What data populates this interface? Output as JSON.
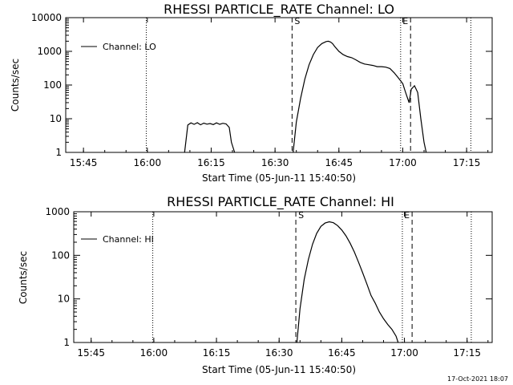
{
  "footer_timestamp": "17-Oct-2021 18:07",
  "chart_data": [
    {
      "type": "line",
      "title": "RHESSI PARTICLE_RATE Channel: LO",
      "xlabel": "Start Time (05-Jun-11 15:40:50)",
      "ylabel": "Counts/sec",
      "yscale": "log",
      "ylim": [
        1,
        10000
      ],
      "xlim": [
        "15:40:50",
        "17:21:00"
      ],
      "xticks": [
        "15:45",
        "16:00",
        "16:15",
        "16:30",
        "16:45",
        "17:00",
        "17:15"
      ],
      "yticks": [
        "1",
        "10",
        "100",
        "1000",
        "10000"
      ],
      "legend": {
        "position": "top-left",
        "label": "Channel: LO"
      },
      "markers": [
        {
          "label": "S",
          "time": "16:34:00",
          "style": "dashed"
        },
        {
          "label": "E",
          "time": "17:01:50",
          "style": "dashed"
        }
      ],
      "dotted_lines": [
        "15:59:45",
        "16:59:30",
        "17:16:00"
      ],
      "segments": [
        {
          "name": "Channel: LO",
          "x": [
            "16:08:45",
            "16:09:30",
            "16:10:15",
            "16:11:00",
            "16:11:45",
            "16:12:30",
            "16:13:15",
            "16:14:00",
            "16:14:45",
            "16:15:30",
            "16:16:15",
            "16:17:00",
            "16:17:45",
            "16:18:30",
            "16:19:15",
            "16:19:45",
            "16:20:30"
          ],
          "y": [
            1,
            6.5,
            7.5,
            6.8,
            7.6,
            6.6,
            7.4,
            6.9,
            7.2,
            6.7,
            7.5,
            6.8,
            7.3,
            7.0,
            5.5,
            2.0,
            1
          ]
        },
        {
          "name": "Channel: LO",
          "x": [
            "16:34:15",
            "16:35:00",
            "16:36:00",
            "16:37:00",
            "16:38:00",
            "16:39:00",
            "16:40:00",
            "16:41:00",
            "16:42:00",
            "16:42:30",
            "16:43:00",
            "16:43:30",
            "16:44:00",
            "16:45:00",
            "16:46:00",
            "16:47:00",
            "16:48:00",
            "16:49:00",
            "16:50:00",
            "16:51:00",
            "16:52:00",
            "16:53:00",
            "16:54:00",
            "16:55:00",
            "16:56:00",
            "16:57:00",
            "16:58:00",
            "16:59:00",
            "17:00:00",
            "17:00:30",
            "17:01:00",
            "17:01:30",
            "17:02:00",
            "17:02:45",
            "17:03:30",
            "17:04:15",
            "17:05:00",
            "17:05:30"
          ],
          "y": [
            1,
            8,
            40,
            150,
            400,
            800,
            1300,
            1700,
            1950,
            2000,
            1900,
            1700,
            1400,
            1000,
            800,
            700,
            650,
            560,
            470,
            420,
            400,
            380,
            350,
            350,
            340,
            310,
            230,
            160,
            110,
            70,
            45,
            30,
            75,
            95,
            60,
            10,
            2,
            1
          ]
        }
      ]
    },
    {
      "type": "line",
      "title": "RHESSI PARTICLE_RATE Channel: HI",
      "xlabel": "Start Time (05-Jun-11 15:40:50)",
      "ylabel": "Counts/sec",
      "yscale": "log",
      "ylim": [
        1,
        1000
      ],
      "xlim": [
        "15:40:50",
        "17:21:00"
      ],
      "xticks": [
        "15:45",
        "16:00",
        "16:15",
        "16:30",
        "16:45",
        "17:00",
        "17:15"
      ],
      "yticks": [
        "1",
        "10",
        "100",
        "1000"
      ],
      "legend": {
        "position": "top-left",
        "label": "Channel: HI"
      },
      "markers": [
        {
          "label": "S",
          "time": "16:34:00",
          "style": "dashed"
        },
        {
          "label": "E",
          "time": "17:01:50",
          "style": "dashed"
        }
      ],
      "dotted_lines": [
        "15:59:45",
        "16:59:30",
        "17:16:00"
      ],
      "segments": [
        {
          "name": "Channel: HI",
          "x": [
            "16:34:15",
            "16:35:00",
            "16:36:00",
            "16:37:00",
            "16:38:00",
            "16:39:00",
            "16:40:00",
            "16:41:00",
            "16:42:00",
            "16:43:00",
            "16:44:00",
            "16:45:00",
            "16:46:00",
            "16:47:00",
            "16:48:00",
            "16:49:00",
            "16:50:00",
            "16:51:00",
            "16:52:00",
            "16:53:00",
            "16:54:00",
            "16:55:00",
            "16:56:00",
            "16:57:00",
            "16:58:00",
            "16:58:30"
          ],
          "y": [
            1,
            6,
            28,
            80,
            180,
            320,
            460,
            550,
            590,
            560,
            480,
            380,
            280,
            190,
            120,
            70,
            40,
            22,
            12,
            8,
            5,
            3.5,
            2.6,
            2.0,
            1.4,
            1
          ]
        }
      ]
    }
  ]
}
